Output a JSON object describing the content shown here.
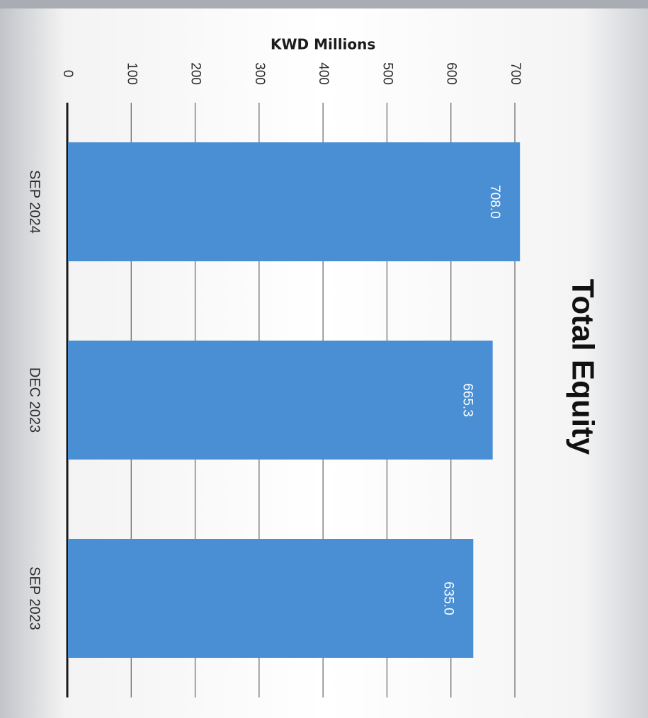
{
  "chart_data": {
    "type": "bar",
    "orientation": "vertical",
    "rotation": "rotated 90 degrees clockwise",
    "title": "Total Equity",
    "ylabel": "KWD Millions",
    "xlabel": "",
    "categories": [
      "SEP 2024",
      "DEC 2023",
      "SEP 2023"
    ],
    "values": [
      708.0,
      665.3,
      635.0
    ],
    "data_labels": [
      "708.0",
      "665.3",
      "635.0"
    ],
    "ylim": [
      0,
      700
    ],
    "yticks": [
      "0",
      "100",
      "200",
      "300",
      "400",
      "500",
      "600",
      "700"
    ],
    "grid": true,
    "legend": "none",
    "colors": {
      "bar": "#4a8fd4",
      "grid": "#6f6f6f",
      "baseline": "#1a1a1a"
    }
  }
}
